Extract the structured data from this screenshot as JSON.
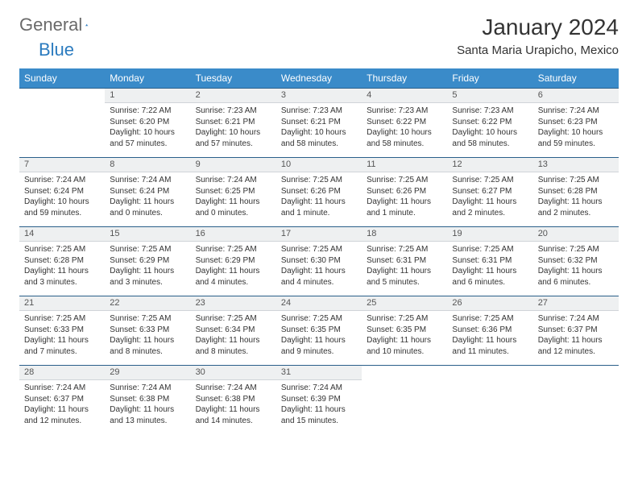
{
  "brand": {
    "left": "General",
    "right": "Blue"
  },
  "title": "January 2024",
  "location": "Santa Maria Urapicho, Mexico",
  "colors": {
    "header_bg": "#3a8bc9",
    "header_text": "#ffffff",
    "daynum_bg": "#eef0f1",
    "rule": "#2a5f8a",
    "logo_gray": "#6a6a6a",
    "logo_blue": "#2b7bbf"
  },
  "weekdays": [
    "Sunday",
    "Monday",
    "Tuesday",
    "Wednesday",
    "Thursday",
    "Friday",
    "Saturday"
  ],
  "weeks": [
    {
      "nums": [
        "",
        "1",
        "2",
        "3",
        "4",
        "5",
        "6"
      ],
      "cells": [
        null,
        {
          "sunrise": "Sunrise: 7:22 AM",
          "sunset": "Sunset: 6:20 PM",
          "daylight": "Daylight: 10 hours and 57 minutes."
        },
        {
          "sunrise": "Sunrise: 7:23 AM",
          "sunset": "Sunset: 6:21 PM",
          "daylight": "Daylight: 10 hours and 57 minutes."
        },
        {
          "sunrise": "Sunrise: 7:23 AM",
          "sunset": "Sunset: 6:21 PM",
          "daylight": "Daylight: 10 hours and 58 minutes."
        },
        {
          "sunrise": "Sunrise: 7:23 AM",
          "sunset": "Sunset: 6:22 PM",
          "daylight": "Daylight: 10 hours and 58 minutes."
        },
        {
          "sunrise": "Sunrise: 7:23 AM",
          "sunset": "Sunset: 6:22 PM",
          "daylight": "Daylight: 10 hours and 58 minutes."
        },
        {
          "sunrise": "Sunrise: 7:24 AM",
          "sunset": "Sunset: 6:23 PM",
          "daylight": "Daylight: 10 hours and 59 minutes."
        }
      ]
    },
    {
      "nums": [
        "7",
        "8",
        "9",
        "10",
        "11",
        "12",
        "13"
      ],
      "cells": [
        {
          "sunrise": "Sunrise: 7:24 AM",
          "sunset": "Sunset: 6:24 PM",
          "daylight": "Daylight: 10 hours and 59 minutes."
        },
        {
          "sunrise": "Sunrise: 7:24 AM",
          "sunset": "Sunset: 6:24 PM",
          "daylight": "Daylight: 11 hours and 0 minutes."
        },
        {
          "sunrise": "Sunrise: 7:24 AM",
          "sunset": "Sunset: 6:25 PM",
          "daylight": "Daylight: 11 hours and 0 minutes."
        },
        {
          "sunrise": "Sunrise: 7:25 AM",
          "sunset": "Sunset: 6:26 PM",
          "daylight": "Daylight: 11 hours and 1 minute."
        },
        {
          "sunrise": "Sunrise: 7:25 AM",
          "sunset": "Sunset: 6:26 PM",
          "daylight": "Daylight: 11 hours and 1 minute."
        },
        {
          "sunrise": "Sunrise: 7:25 AM",
          "sunset": "Sunset: 6:27 PM",
          "daylight": "Daylight: 11 hours and 2 minutes."
        },
        {
          "sunrise": "Sunrise: 7:25 AM",
          "sunset": "Sunset: 6:28 PM",
          "daylight": "Daylight: 11 hours and 2 minutes."
        }
      ]
    },
    {
      "nums": [
        "14",
        "15",
        "16",
        "17",
        "18",
        "19",
        "20"
      ],
      "cells": [
        {
          "sunrise": "Sunrise: 7:25 AM",
          "sunset": "Sunset: 6:28 PM",
          "daylight": "Daylight: 11 hours and 3 minutes."
        },
        {
          "sunrise": "Sunrise: 7:25 AM",
          "sunset": "Sunset: 6:29 PM",
          "daylight": "Daylight: 11 hours and 3 minutes."
        },
        {
          "sunrise": "Sunrise: 7:25 AM",
          "sunset": "Sunset: 6:29 PM",
          "daylight": "Daylight: 11 hours and 4 minutes."
        },
        {
          "sunrise": "Sunrise: 7:25 AM",
          "sunset": "Sunset: 6:30 PM",
          "daylight": "Daylight: 11 hours and 4 minutes."
        },
        {
          "sunrise": "Sunrise: 7:25 AM",
          "sunset": "Sunset: 6:31 PM",
          "daylight": "Daylight: 11 hours and 5 minutes."
        },
        {
          "sunrise": "Sunrise: 7:25 AM",
          "sunset": "Sunset: 6:31 PM",
          "daylight": "Daylight: 11 hours and 6 minutes."
        },
        {
          "sunrise": "Sunrise: 7:25 AM",
          "sunset": "Sunset: 6:32 PM",
          "daylight": "Daylight: 11 hours and 6 minutes."
        }
      ]
    },
    {
      "nums": [
        "21",
        "22",
        "23",
        "24",
        "25",
        "26",
        "27"
      ],
      "cells": [
        {
          "sunrise": "Sunrise: 7:25 AM",
          "sunset": "Sunset: 6:33 PM",
          "daylight": "Daylight: 11 hours and 7 minutes."
        },
        {
          "sunrise": "Sunrise: 7:25 AM",
          "sunset": "Sunset: 6:33 PM",
          "daylight": "Daylight: 11 hours and 8 minutes."
        },
        {
          "sunrise": "Sunrise: 7:25 AM",
          "sunset": "Sunset: 6:34 PM",
          "daylight": "Daylight: 11 hours and 8 minutes."
        },
        {
          "sunrise": "Sunrise: 7:25 AM",
          "sunset": "Sunset: 6:35 PM",
          "daylight": "Daylight: 11 hours and 9 minutes."
        },
        {
          "sunrise": "Sunrise: 7:25 AM",
          "sunset": "Sunset: 6:35 PM",
          "daylight": "Daylight: 11 hours and 10 minutes."
        },
        {
          "sunrise": "Sunrise: 7:25 AM",
          "sunset": "Sunset: 6:36 PM",
          "daylight": "Daylight: 11 hours and 11 minutes."
        },
        {
          "sunrise": "Sunrise: 7:24 AM",
          "sunset": "Sunset: 6:37 PM",
          "daylight": "Daylight: 11 hours and 12 minutes."
        }
      ]
    },
    {
      "nums": [
        "28",
        "29",
        "30",
        "31",
        "",
        "",
        ""
      ],
      "cells": [
        {
          "sunrise": "Sunrise: 7:24 AM",
          "sunset": "Sunset: 6:37 PM",
          "daylight": "Daylight: 11 hours and 12 minutes."
        },
        {
          "sunrise": "Sunrise: 7:24 AM",
          "sunset": "Sunset: 6:38 PM",
          "daylight": "Daylight: 11 hours and 13 minutes."
        },
        {
          "sunrise": "Sunrise: 7:24 AM",
          "sunset": "Sunset: 6:38 PM",
          "daylight": "Daylight: 11 hours and 14 minutes."
        },
        {
          "sunrise": "Sunrise: 7:24 AM",
          "sunset": "Sunset: 6:39 PM",
          "daylight": "Daylight: 11 hours and 15 minutes."
        },
        null,
        null,
        null
      ]
    }
  ]
}
